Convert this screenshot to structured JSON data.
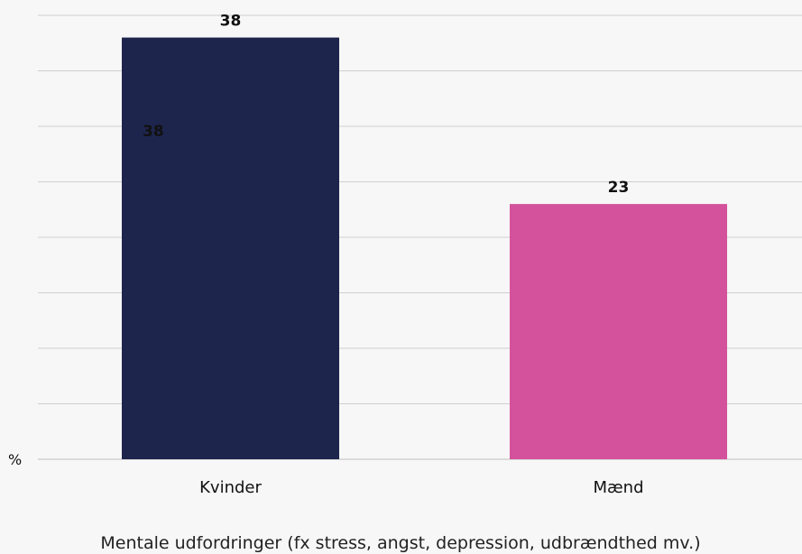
{
  "chart_data": {
    "type": "bar",
    "categories": [
      "Kvinder",
      "Mænd"
    ],
    "values": [
      38,
      23
    ],
    "colors": [
      "#1e254d",
      "#d4529b"
    ],
    "ylabel": "%",
    "xlabel": "Mentale udfordringer (fx stress, angst, depression, udbrændthed mv.)",
    "ylim": [
      0,
      40
    ],
    "grid": true,
    "inner_label": "38"
  }
}
